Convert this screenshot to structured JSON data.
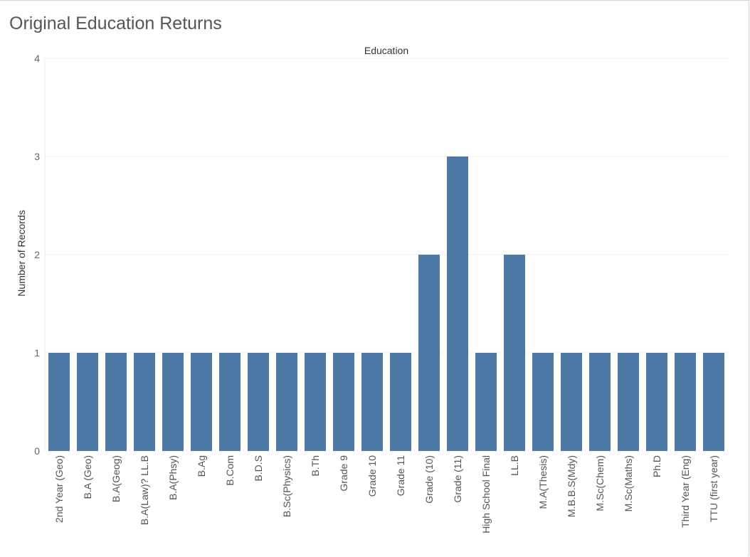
{
  "page": {
    "title": "Original Education Returns"
  },
  "chart_data": {
    "type": "bar",
    "column_header": "Education",
    "ylabel": "Number of Records",
    "ylim": [
      0,
      4
    ],
    "yticks": [
      0,
      1,
      2,
      3,
      4
    ],
    "bar_color": "#4e79a7",
    "gridlines": true,
    "categories": [
      "2nd Year (Geo)",
      "B.A (Geo)",
      "B.A(Geog)",
      "B.A(Law)? LL.B",
      "B.A(Phsy)",
      "B.Ag",
      "B.Com",
      "B.D.S",
      "B.Sc(Physics)",
      "B.Th",
      "Grade 9",
      "Grade 10",
      "Grade 11",
      "Grade (10)",
      "Grade (11)",
      "High School Final",
      "LL.B",
      "M.A(Thesis)",
      "M.B.B.S(Mdy)",
      "M.Sc(Chem)",
      "M.Sc(Maths)",
      "Ph.D",
      "Third Year (Eng)",
      "TTU (first year)"
    ],
    "values": [
      1,
      1,
      1,
      1,
      1,
      1,
      1,
      1,
      1,
      1,
      1,
      1,
      1,
      2,
      3,
      1,
      2,
      1,
      1,
      1,
      1,
      1,
      1,
      1
    ]
  }
}
